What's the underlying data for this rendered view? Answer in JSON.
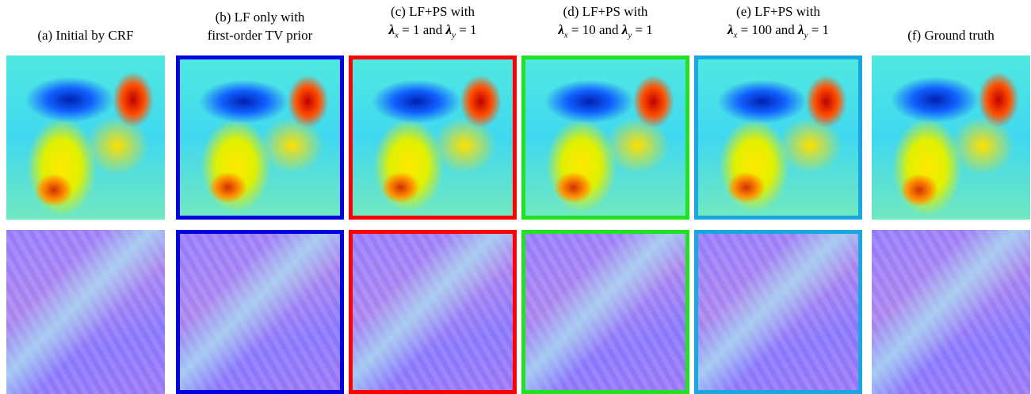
{
  "figure": {
    "panels": [
      {
        "lines": [
          [
            {
              "t": "(a) Initial by CRF"
            }
          ]
        ]
      },
      {
        "lines": [
          [
            {
              "t": "(b) LF only with"
            }
          ],
          [
            {
              "t": "first-order TV prior"
            }
          ]
        ],
        "border": "#0000e0"
      },
      {
        "lines": [
          [
            {
              "t": "(c) LF+PS with"
            }
          ],
          [
            {
              "m": "λ"
            },
            {
              "sub": "x"
            },
            {
              "t": " = 1 and "
            },
            {
              "m": "λ"
            },
            {
              "sub": "y"
            },
            {
              "t": " = 1"
            }
          ]
        ],
        "border": "#ff0000"
      },
      {
        "lines": [
          [
            {
              "t": "(d) LF+PS with"
            }
          ],
          [
            {
              "m": "λ"
            },
            {
              "sub": "x"
            },
            {
              "t": " = 10 and "
            },
            {
              "m": "λ"
            },
            {
              "sub": "y"
            },
            {
              "t": " = 1"
            }
          ]
        ],
        "border": "#22e022"
      },
      {
        "lines": [
          [
            {
              "t": "(e) LF+PS with"
            }
          ],
          [
            {
              "m": "λ"
            },
            {
              "sub": "x"
            },
            {
              "t": " = 100 and "
            },
            {
              "m": "λ"
            },
            {
              "sub": "y"
            },
            {
              "t": " = 1"
            }
          ]
        ],
        "border": "#1aa6e0"
      },
      {
        "lines": [
          [
            {
              "t": "(f) Ground truth"
            }
          ]
        ]
      }
    ]
  }
}
